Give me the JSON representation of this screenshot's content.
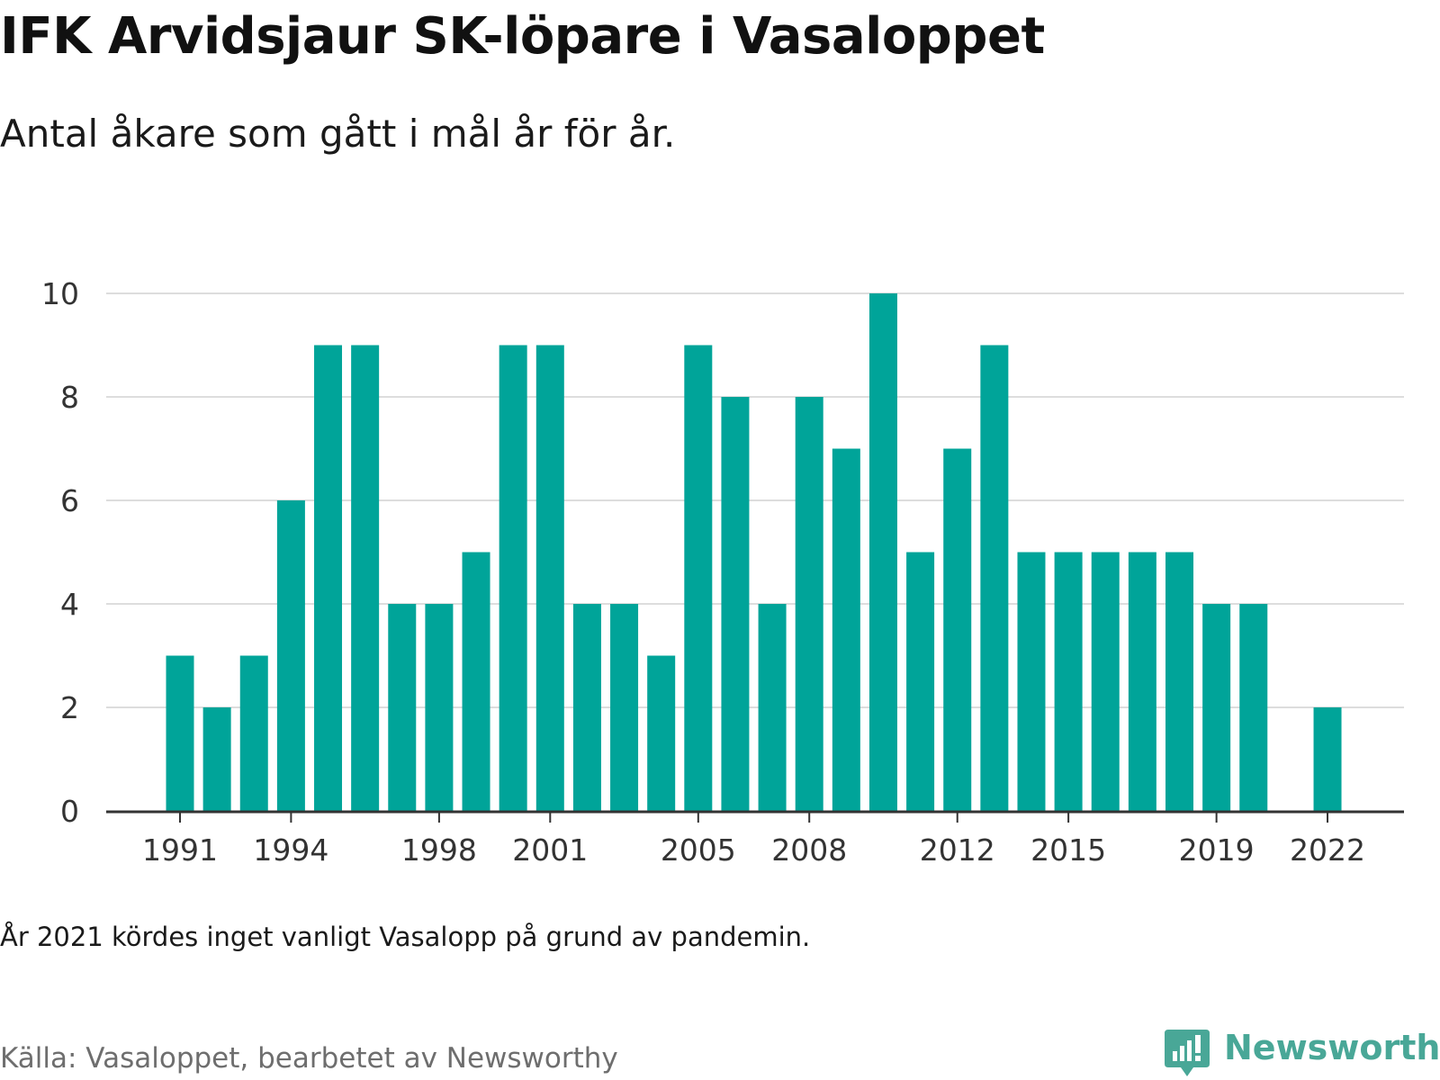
{
  "header": {
    "title": "IFK Arvidsjaur SK-löpare i Vasaloppet",
    "subtitle": "Antal åkare som gått i mål år för år."
  },
  "footer": {
    "note": "År 2021 kördes inget vanligt Vasalopp på grund av pandemin.",
    "source": "Källa: Vasaloppet, bearbetet av Newsworthy",
    "brand": "Newsworthy"
  },
  "colors": {
    "bar": "#00a499",
    "grid": "#dddddd",
    "axis": "#333333",
    "brand": "#49a797"
  },
  "icons": {
    "brand_logo": "bar-chart-speech-bubble-icon"
  },
  "chart_data": {
    "type": "bar",
    "categories": [
      1991,
      1992,
      1993,
      1994,
      1995,
      1996,
      1997,
      1998,
      1999,
      2000,
      2001,
      2002,
      2003,
      2004,
      2005,
      2006,
      2007,
      2008,
      2009,
      2010,
      2011,
      2012,
      2013,
      2014,
      2015,
      2016,
      2017,
      2018,
      2019,
      2020,
      2021,
      2022
    ],
    "values": [
      3,
      2,
      3,
      6,
      9,
      9,
      4,
      4,
      5,
      9,
      9,
      4,
      4,
      3,
      9,
      8,
      4,
      8,
      7,
      10,
      5,
      7,
      9,
      5,
      5,
      5,
      5,
      5,
      4,
      4,
      null,
      2
    ],
    "x_tick_labels": [
      "1991",
      "1994",
      "1998",
      "2001",
      "2005",
      "2008",
      "2012",
      "2015",
      "2019",
      "2022"
    ],
    "y_ticks": [
      "0",
      "2",
      "4",
      "6",
      "8",
      "10"
    ],
    "ylim": [
      0,
      10
    ],
    "grid": true,
    "legend": "none"
  }
}
